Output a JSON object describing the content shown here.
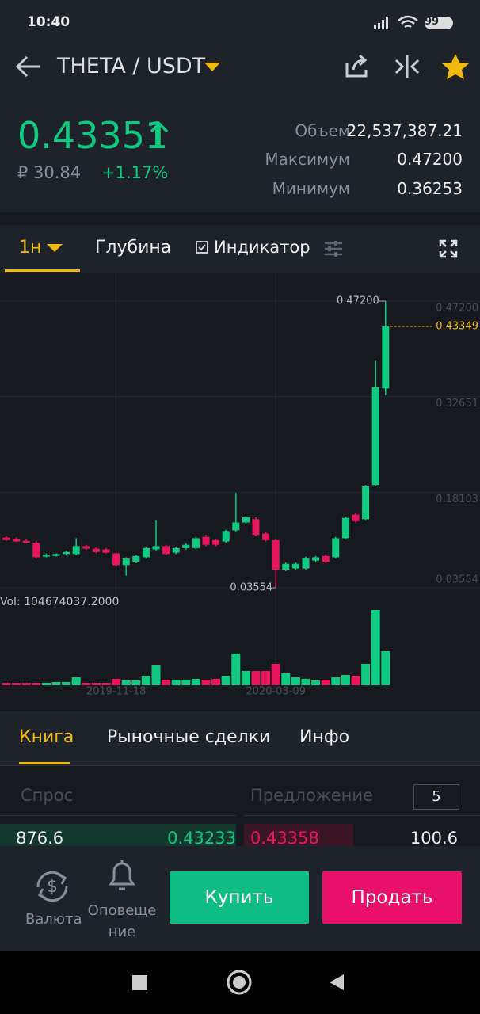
{
  "status": {
    "time": "10:40",
    "battery": "99"
  },
  "header": {
    "pair": "THETA / USDT"
  },
  "price": {
    "last": "0.43351",
    "fiat": "₽ 30.84",
    "change": "+1.17%"
  },
  "stats": [
    {
      "label": "Объем",
      "value": "22,537,387.21"
    },
    {
      "label": "Максимум",
      "value": "0.47200"
    },
    {
      "label": "Минимум",
      "value": "0.36253"
    }
  ],
  "tabs": [
    "1н",
    "Глубина",
    "Индикатор"
  ],
  "chart_data": {
    "type": "candlestick",
    "categories": [
      null,
      null,
      null,
      null,
      null,
      null,
      null,
      null,
      null,
      null,
      null,
      "2019-11-18",
      null,
      null,
      null,
      null,
      null,
      null,
      null,
      null,
      null,
      null,
      null,
      null,
      null,
      null,
      null,
      "2020-03-09",
      null,
      null,
      null,
      null,
      null,
      null,
      null,
      null,
      null,
      null,
      null
    ],
    "open": [
      0.112,
      0.11,
      0.107,
      0.104,
      0.083,
      0.084,
      0.087,
      0.087,
      0.099,
      0.095,
      0.094,
      0.088,
      0.07,
      0.075,
      0.082,
      0.094,
      0.099,
      0.089,
      0.096,
      0.096,
      0.113,
      0.108,
      0.106,
      0.123,
      0.135,
      0.14,
      0.118,
      0.108,
      0.063,
      0.065,
      0.065,
      0.077,
      0.084,
      0.082,
      0.111,
      0.147,
      0.14,
      0.192,
      0.339
    ],
    "high": [
      0.114,
      0.112,
      0.109,
      0.107,
      0.088,
      0.088,
      0.092,
      0.111,
      0.101,
      0.097,
      0.096,
      0.09,
      0.082,
      0.086,
      0.098,
      0.138,
      0.101,
      0.098,
      0.103,
      0.113,
      0.116,
      0.11,
      0.124,
      0.18,
      0.145,
      0.143,
      0.12,
      0.11,
      0.074,
      0.074,
      0.083,
      0.084,
      0.086,
      0.113,
      0.144,
      0.149,
      0.192,
      0.381,
      0.472
    ],
    "low": [
      0.107,
      0.105,
      0.103,
      0.08,
      0.082,
      0.083,
      0.085,
      0.085,
      0.093,
      0.088,
      0.088,
      0.068,
      0.054,
      0.073,
      0.08,
      0.092,
      0.085,
      0.087,
      0.094,
      0.094,
      0.099,
      0.099,
      0.104,
      0.121,
      0.133,
      0.114,
      0.106,
      0.03554,
      0.061,
      0.063,
      0.063,
      0.075,
      0.073,
      0.08,
      0.109,
      0.135,
      0.138,
      0.19,
      0.329
    ],
    "close": [
      0.108,
      0.106,
      0.104,
      0.082,
      0.086,
      0.087,
      0.09,
      0.099,
      0.095,
      0.09,
      0.089,
      0.07,
      0.08,
      0.084,
      0.096,
      0.099,
      0.087,
      0.096,
      0.101,
      0.111,
      0.101,
      0.101,
      0.122,
      0.135,
      0.143,
      0.116,
      0.108,
      0.063,
      0.072,
      0.072,
      0.081,
      0.082,
      0.075,
      0.111,
      0.142,
      0.137,
      0.19,
      0.341,
      0.43349
    ],
    "volume": [
      7300000,
      7300000,
      7300000,
      7300000,
      7300000,
      9700000,
      9700000,
      24300000,
      7300000,
      7300000,
      7300000,
      19500000,
      14600000,
      14600000,
      29200000,
      60900000,
      17000000,
      17000000,
      17000000,
      19500000,
      17000000,
      19500000,
      29200000,
      97400000,
      43800000,
      43800000,
      43800000,
      65700000,
      36500000,
      24300000,
      19500000,
      14600000,
      17000000,
      24300000,
      31600000,
      29200000,
      65700000,
      231200000,
      104674037.2
    ],
    "volume_label": "Vol: 104674037.2000",
    "up_color": "#0ecb81",
    "down_color": "#e8175d",
    "ylim": [
      0.03554,
      0.472
    ],
    "yticks": [
      {
        "value": 0.472,
        "label": "0.47200"
      },
      0.32651,
      0.18103,
      0.03554
    ],
    "max_label": "0.47200",
    "min_label": "0.03554",
    "last_label": "0.43349",
    "grid": true
  },
  "book_tabs": [
    "Книга",
    "Рыночные сделки",
    "Инфо"
  ],
  "book": {
    "bid_header": "Спрос",
    "ask_header": "Предложение",
    "depth": "5",
    "row": [
      "876.6",
      "0.43233",
      "0.43358",
      "100.6"
    ]
  },
  "bottom": {
    "currency": "Валюта",
    "alerts": "Оповещение",
    "buy": "Купить",
    "sell": "Продать"
  }
}
